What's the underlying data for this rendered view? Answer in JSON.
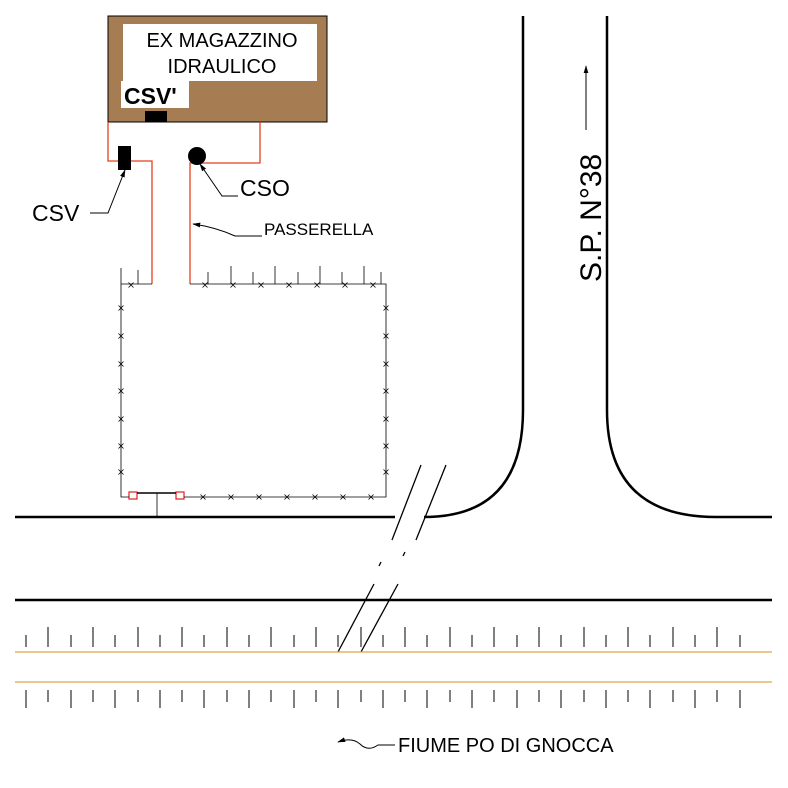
{
  "building": {
    "line1": "EX MAGAZZINO",
    "line2": "IDRAULICO",
    "fill_color": "#a67c52"
  },
  "labels": {
    "csv_prime": "CSV'",
    "csv": "CSV",
    "cso": "CSO",
    "passerella": "PASSERELLA",
    "road": "S.P. N°38",
    "river": "FIUME PO DI GNOCCA"
  },
  "colors": {
    "pipe": "#e8401c",
    "river_line": "#d9a64a",
    "ink": "#000000"
  }
}
